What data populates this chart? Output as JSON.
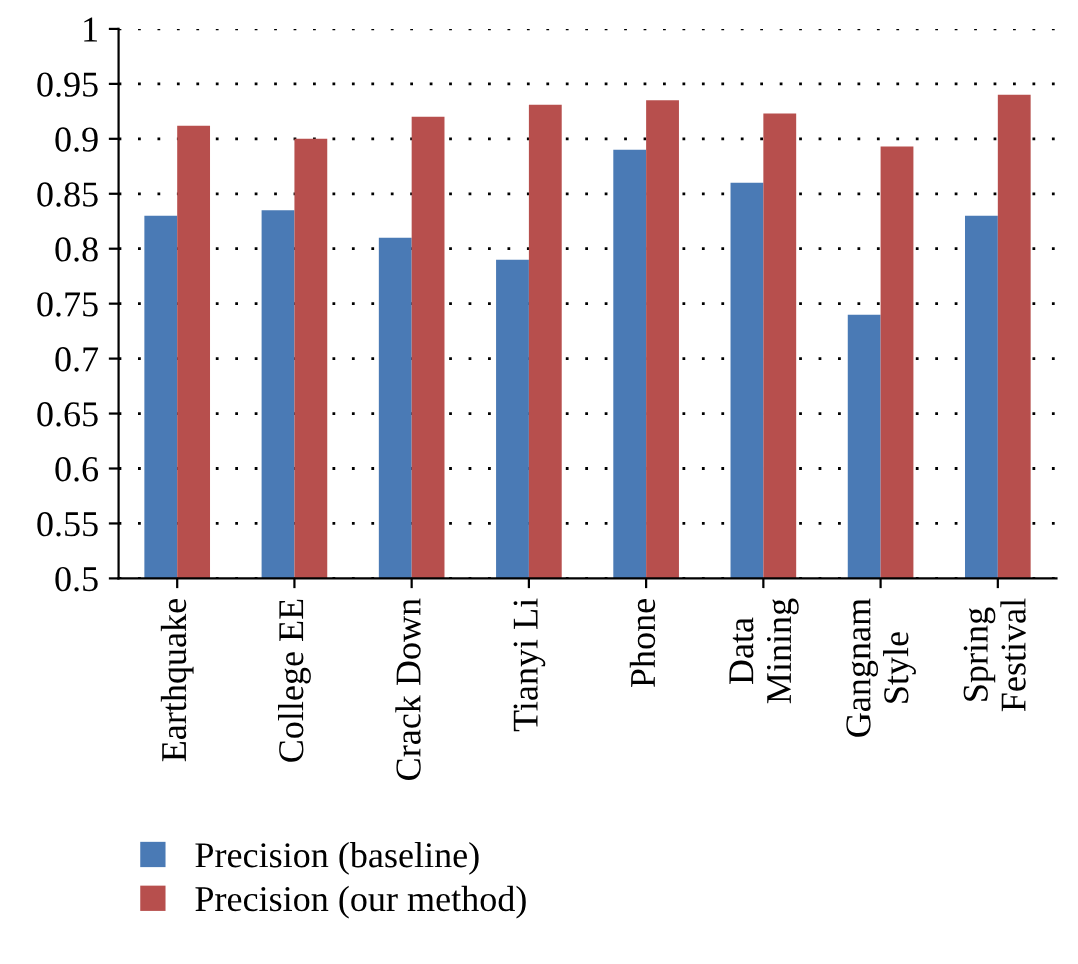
{
  "chart_data": {
    "type": "bar",
    "categories": [
      "Earthquake",
      "College EE",
      "Crack Down",
      "Tianyi Li",
      "Phone",
      "Data\nMining",
      "Gangnam\nStyle",
      "Spring\nFestival"
    ],
    "series": [
      {
        "name": "Precision (baseline)",
        "color": "#4a7ab5",
        "values": [
          0.83,
          0.835,
          0.81,
          0.79,
          0.89,
          0.86,
          0.74,
          0.83
        ]
      },
      {
        "name": "Precision (our method)",
        "color": "#b74f4d",
        "values": [
          0.912,
          0.9,
          0.92,
          0.931,
          0.935,
          0.923,
          0.893,
          0.94
        ]
      }
    ],
    "ylim": [
      0.5,
      1
    ],
    "yticks": [
      0.5,
      0.55,
      0.6,
      0.65,
      0.7,
      0.75,
      0.8,
      0.85,
      0.9,
      0.95,
      1
    ],
    "grid": "y",
    "legend": "bottom"
  }
}
